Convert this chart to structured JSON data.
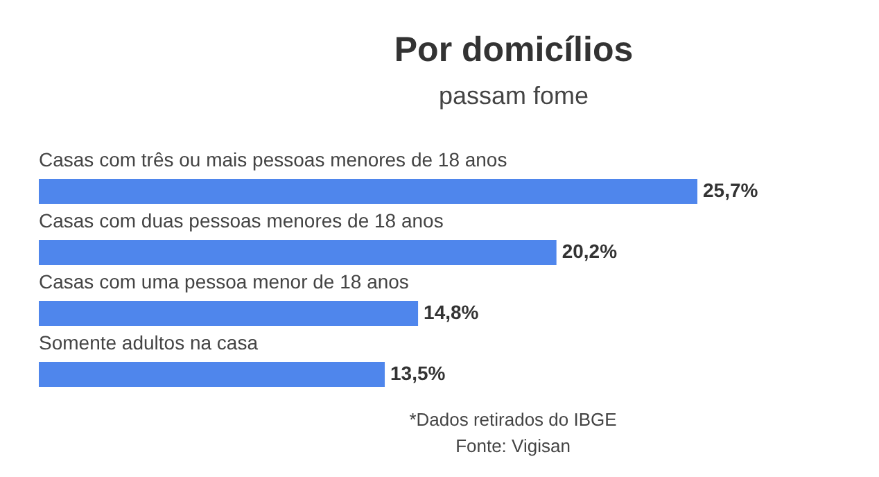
{
  "chart_data": {
    "type": "bar",
    "orientation": "horizontal",
    "title": "Por domicílios",
    "subtitle": "passam fome",
    "categories": [
      "Casas com três ou mais pessoas menores de 18 anos",
      "Casas com duas pessoas menores de 18 anos",
      "Casas com uma pessoa menor de 18 anos",
      "Somente adultos na casa"
    ],
    "values": [
      25.7,
      20.2,
      14.8,
      13.5
    ],
    "value_labels": [
      "25,7%",
      "20,2%",
      "14,8%",
      "13,5%"
    ],
    "color": "#4f86ec",
    "annotations": [
      "*Dados retirados do IBGE",
      "Fonte: Vigisan"
    ]
  }
}
